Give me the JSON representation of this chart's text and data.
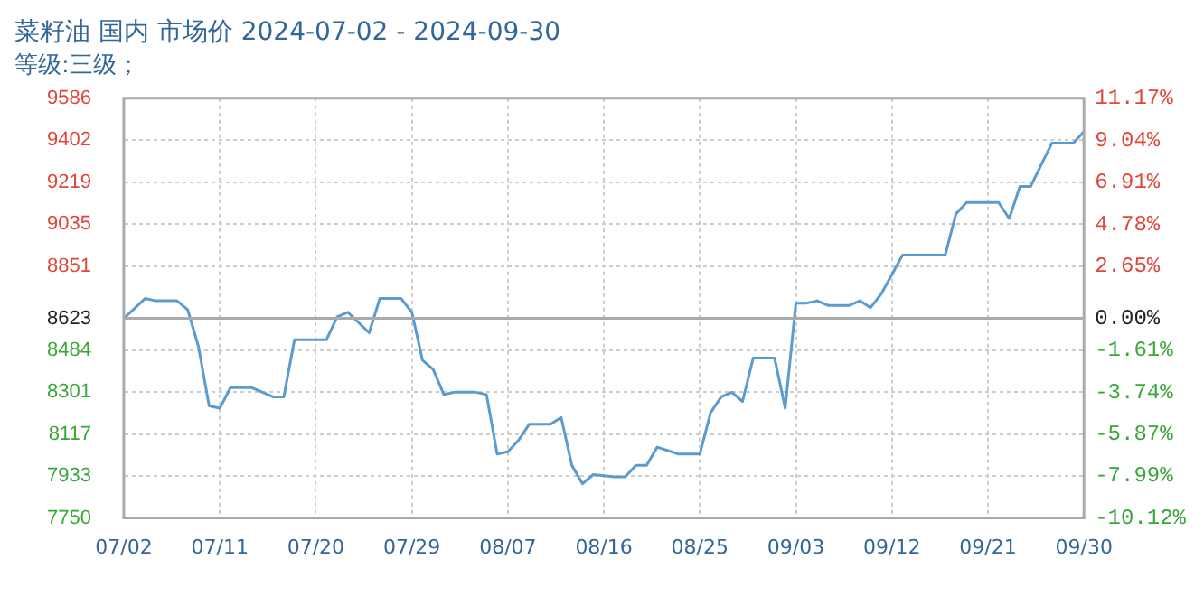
{
  "chart_data": {
    "type": "line",
    "title": "菜籽油 国内 市场价 2024-07-02 - 2024-09-30",
    "subtitle": "等级:三级；",
    "x": [
      "2024-07-02",
      "2024-07-04",
      "2024-07-05",
      "2024-07-07",
      "2024-07-08",
      "2024-07-09",
      "2024-07-10",
      "2024-07-11",
      "2024-07-12",
      "2024-07-14",
      "2024-07-16",
      "2024-07-17",
      "2024-07-18",
      "2024-07-21",
      "2024-07-22",
      "2024-07-23",
      "2024-07-25",
      "2024-07-26",
      "2024-07-28",
      "2024-07-29",
      "2024-07-30",
      "2024-07-31",
      "2024-08-01",
      "2024-08-02",
      "2024-08-04",
      "2024-08-05",
      "2024-08-06",
      "2024-08-07",
      "2024-08-08",
      "2024-08-09",
      "2024-08-11",
      "2024-08-12",
      "2024-08-13",
      "2024-08-14",
      "2024-08-15",
      "2024-08-17",
      "2024-08-18",
      "2024-08-19",
      "2024-08-20",
      "2024-08-21",
      "2024-08-23",
      "2024-08-25",
      "2024-08-26",
      "2024-08-27",
      "2024-08-28",
      "2024-08-29",
      "2024-08-30",
      "2024-09-01",
      "2024-09-02",
      "2024-09-03",
      "2024-09-04",
      "2024-09-05",
      "2024-09-06",
      "2024-09-08",
      "2024-09-09",
      "2024-09-10",
      "2024-09-11",
      "2024-09-13",
      "2024-09-17",
      "2024-09-18",
      "2024-09-19",
      "2024-09-22",
      "2024-09-23",
      "2024-09-24",
      "2024-09-25",
      "2024-09-27",
      "2024-09-29",
      "2024-09-30"
    ],
    "series": [
      {
        "color": "#5b9bd0",
        "values": [
          8623,
          8710,
          8700,
          8700,
          8660,
          8500,
          8240,
          8230,
          8320,
          8320,
          8280,
          8280,
          8530,
          8530,
          8630,
          8650,
          8560,
          8710,
          8710,
          8650,
          8440,
          8400,
          8290,
          8300,
          8300,
          8290,
          8030,
          8040,
          8090,
          8160,
          8160,
          8190,
          7980,
          7900,
          7940,
          7930,
          7930,
          7980,
          7980,
          8060,
          8030,
          8030,
          8210,
          8280,
          8300,
          8260,
          8450,
          8450,
          8230,
          8690,
          8690,
          8700,
          8680,
          8680,
          8700,
          8670,
          8730,
          8900,
          8900,
          9080,
          9130,
          9130,
          9060,
          9200,
          9200,
          9390,
          9390,
          9440
        ]
      }
    ],
    "xlim": [
      "2024-07-02",
      "2024-09-30"
    ],
    "xticks": [
      {
        "value": "2024-07-02",
        "label": "07/02"
      },
      {
        "value": "2024-07-11",
        "label": "07/11"
      },
      {
        "value": "2024-07-20",
        "label": "07/20"
      },
      {
        "value": "2024-07-29",
        "label": "07/29"
      },
      {
        "value": "2024-08-07",
        "label": "08/07"
      },
      {
        "value": "2024-08-16",
        "label": "08/16"
      },
      {
        "value": "2024-08-25",
        "label": "08/25"
      },
      {
        "value": "2024-09-03",
        "label": "09/03"
      },
      {
        "value": "2024-09-12",
        "label": "09/12"
      },
      {
        "value": "2024-09-21",
        "label": "09/21"
      },
      {
        "value": "2024-09-30",
        "label": "09/30"
      }
    ],
    "ylim": [
      7750,
      9586
    ],
    "yticks": [
      7750,
      7933,
      8117,
      8301,
      8484,
      8623,
      8851,
      9035,
      9219,
      9402,
      9586
    ],
    "y2lim": [
      -10.12,
      11.17
    ],
    "y2ticks": [
      {
        "value": -10.12,
        "label": "-10.12%"
      },
      {
        "value": -7.99,
        "label": "-7.99%"
      },
      {
        "value": -5.87,
        "label": "-5.87%"
      },
      {
        "value": -3.74,
        "label": "-3.74%"
      },
      {
        "value": -1.61,
        "label": "-1.61%"
      },
      {
        "value": 0,
        "label": "0.00%"
      },
      {
        "value": 2.65,
        "label": "2.65%"
      },
      {
        "value": 4.78,
        "label": "4.78%"
      },
      {
        "value": 6.91,
        "label": "6.91%"
      },
      {
        "value": 9.04,
        "label": "9.04%"
      },
      {
        "value": 11.17,
        "label": "11.17%"
      }
    ],
    "ref_lines": [
      {
        "axis": "y",
        "value": 8623,
        "color": "#aaaaaa"
      }
    ],
    "grid": true,
    "legend": false,
    "marker": "none",
    "line_style": "solid"
  }
}
